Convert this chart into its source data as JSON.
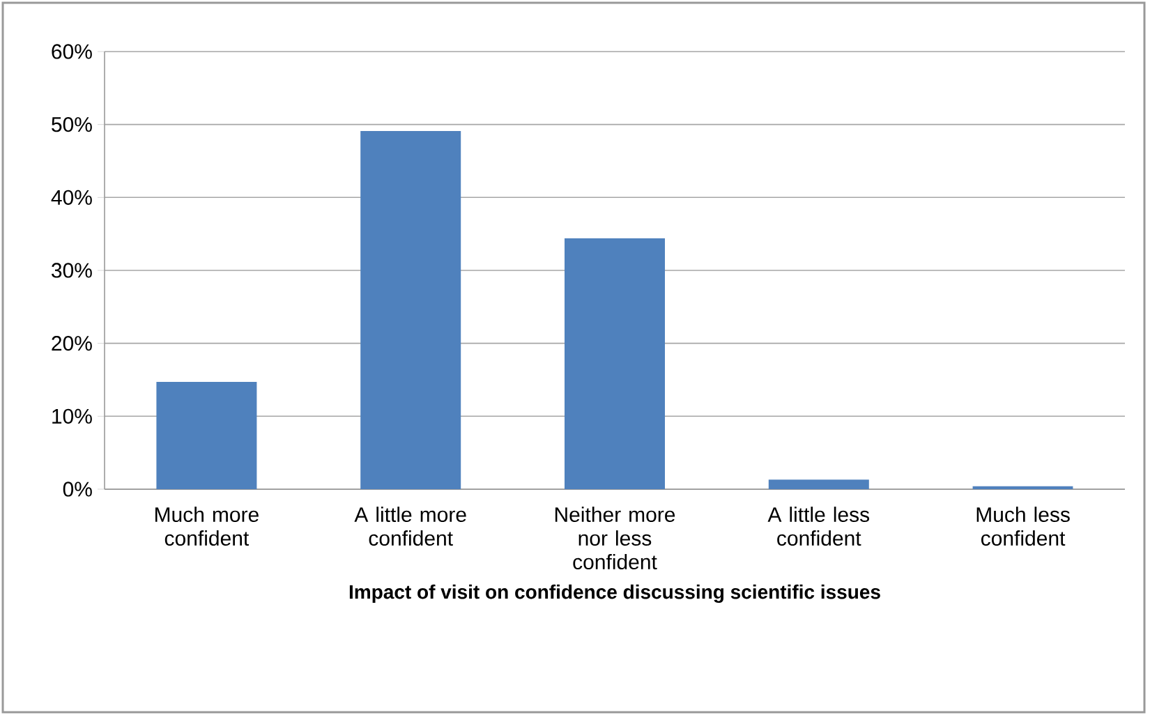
{
  "chart_data": {
    "type": "bar",
    "categories": [
      "Much more confident",
      "A little more confident",
      "Neither more nor less confident",
      "A little less confident",
      "Much less confident"
    ],
    "values": [
      14.7,
      49.1,
      34.4,
      1.3,
      0.4
    ],
    "color": "#4f81bd",
    "xlabel": "Impact of visit on confidence discussing scientific issues",
    "ylim": [
      0,
      60
    ],
    "yticks": [
      {
        "value": 0,
        "label": "0%"
      },
      {
        "value": 10,
        "label": "10%"
      },
      {
        "value": 20,
        "label": "20%"
      },
      {
        "value": 30,
        "label": "30%"
      },
      {
        "value": 40,
        "label": "40%"
      },
      {
        "value": 50,
        "label": "50%"
      },
      {
        "value": 60,
        "label": "60%"
      }
    ],
    "grid": "y"
  }
}
